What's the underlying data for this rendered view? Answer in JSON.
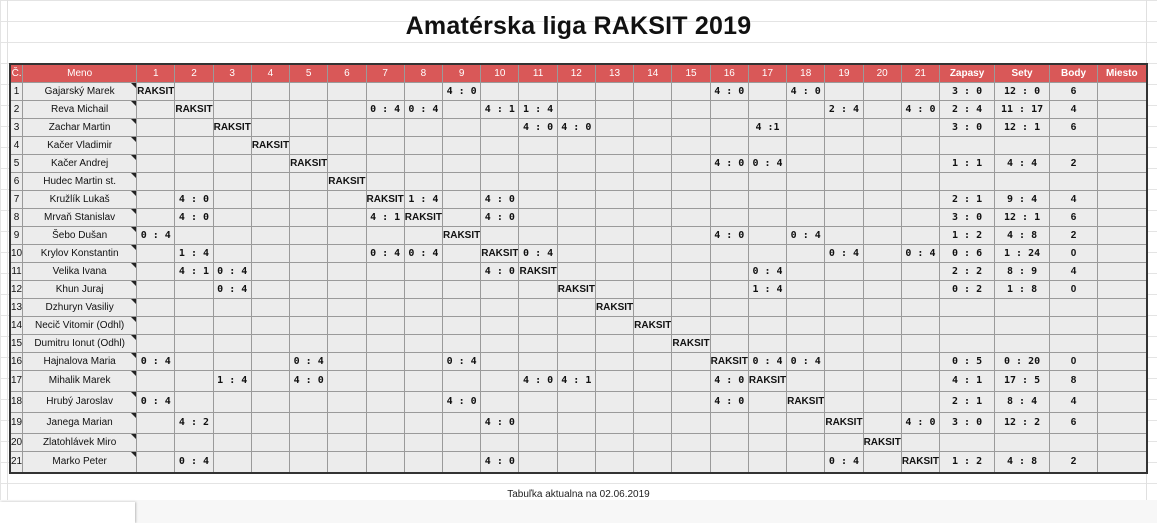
{
  "title": "Amatérska liga RAKSIT 2019",
  "footer": "Tabuľka aktualna na 02.06.2019",
  "self_label": "RAKSIT",
  "columns": {
    "no": "Č.",
    "name": "Meno",
    "opponents": [
      "1",
      "2",
      "3",
      "4",
      "5",
      "6",
      "7",
      "8",
      "9",
      "10",
      "11",
      "12",
      "13",
      "14",
      "15",
      "16",
      "17",
      "18",
      "19",
      "20",
      "21"
    ],
    "zapasy": "Zapasy",
    "sety": "Sety",
    "body": "Body",
    "miesto": "Miesto"
  },
  "players": [
    {
      "no": "1",
      "name": "Gajarský Marek",
      "results": {
        "9": "4 : 0",
        "16": "4 : 0",
        "18": "4 : 0"
      },
      "zapasy": "3 : 0",
      "sety": "12 : 0",
      "body": "6"
    },
    {
      "no": "2",
      "name": "Reva Michail",
      "results": {
        "7": "0 : 4",
        "8": "0 : 4",
        "10": "4 : 1",
        "11": "1 : 4",
        "19": "2 : 4",
        "21": "4 : 0"
      },
      "zapasy": "2 : 4",
      "sety": "11 : 17",
      "body": "4"
    },
    {
      "no": "3",
      "name": "Zachar Martin",
      "results": {
        "11": "4 : 0",
        "12": "4 : 0",
        "17": "4 :1"
      },
      "zapasy": "3 : 0",
      "sety": "12 : 1",
      "body": "6"
    },
    {
      "no": "4",
      "name": "Kačer Vladimir",
      "results": {},
      "zapasy": "",
      "sety": "",
      "body": ""
    },
    {
      "no": "5",
      "name": "Kačer Andrej",
      "results": {
        "16": "4 : 0",
        "17": "0 : 4"
      },
      "zapasy": "1 : 1",
      "sety": "4 : 4",
      "body": "2"
    },
    {
      "no": "6",
      "name": "Hudec Martin st.",
      "results": {},
      "zapasy": "",
      "sety": "",
      "body": ""
    },
    {
      "no": "7",
      "name": "Kružlík Lukaš",
      "results": {
        "2": "4 : 0",
        "8": "1 : 4",
        "10": "4 : 0"
      },
      "zapasy": "2 : 1",
      "sety": "9 : 4",
      "body": "4"
    },
    {
      "no": "8",
      "name": "Mrvaň Stanislav",
      "results": {
        "2": "4 : 0",
        "7": "4 : 1",
        "10": "4 : 0"
      },
      "zapasy": "3 : 0",
      "sety": "12 : 1",
      "body": "6"
    },
    {
      "no": "9",
      "name": "Šebo Dušan",
      "results": {
        "1": "0 : 4",
        "16": "4 : 0",
        "18": "0 : 4"
      },
      "zapasy": "1 : 2",
      "sety": "4 : 8",
      "body": "2"
    },
    {
      "no": "10",
      "name": "Krylov Konstantin",
      "results": {
        "2": "1 : 4",
        "7": "0 : 4",
        "8": "0 : 4",
        "11": "0 : 4",
        "19": "0 : 4",
        "21": "0 : 4"
      },
      "zapasy": "0 : 6",
      "sety": "1 : 24",
      "body": "0"
    },
    {
      "no": "11",
      "name": "Velika Ivana",
      "results": {
        "2": "4 : 1",
        "3": "0 : 4",
        "10": "4 : 0",
        "17": "0 : 4"
      },
      "zapasy": "2 : 2",
      "sety": "8 : 9",
      "body": "4"
    },
    {
      "no": "12",
      "name": "Khun Juraj",
      "results": {
        "3": "0 : 4",
        "17": "1 : 4"
      },
      "zapasy": "0 : 2",
      "sety": "1 : 8",
      "body": "0"
    },
    {
      "no": "13",
      "name": "Dzhuryn Vasiliy",
      "results": {},
      "zapasy": "",
      "sety": "",
      "body": ""
    },
    {
      "no": "14",
      "name": "Necič Vitomir (Odhl)",
      "results": {},
      "zapasy": "",
      "sety": "",
      "body": ""
    },
    {
      "no": "15",
      "name": "Dumitru Ionut (Odhl)",
      "results": {},
      "zapasy": "",
      "sety": "",
      "body": ""
    },
    {
      "no": "16",
      "name": "Hajnalova Maria",
      "results": {
        "1": "0 : 4",
        "5": "0 : 4",
        "9": "0 : 4",
        "17": "0 : 4",
        "18": "0 : 4"
      },
      "zapasy": "0 : 5",
      "sety": "0 : 20",
      "body": "0"
    },
    {
      "no": "17",
      "name": "Mihalik Marek",
      "results": {
        "3": "1 : 4",
        "5": "4 : 0",
        "11": "4 : 0",
        "12": "4 : 1",
        "16": "4 : 0"
      },
      "zapasy": "4 : 1",
      "sety": "17 : 5",
      "body": "8"
    },
    {
      "no": "18",
      "name": "Hrubý Jaroslav",
      "results": {
        "1": "0 : 4",
        "9": "4 : 0",
        "16": "4 : 0"
      },
      "zapasy": "2 : 1",
      "sety": "8 : 4",
      "body": "4"
    },
    {
      "no": "19",
      "name": "Janega Marian",
      "results": {
        "2": "4 : 2",
        "10": "4 : 0",
        "21": "4 : 0"
      },
      "zapasy": "3 : 0",
      "sety": "12 : 2",
      "body": "6"
    },
    {
      "no": "20",
      "name": "Zlatohlávek Miro",
      "results": {},
      "zapasy": "",
      "sety": "",
      "body": ""
    },
    {
      "no": "21",
      "name": "Marko Peter",
      "results": {
        "2": "0 : 4",
        "10": "4 : 0",
        "19": "0 : 4"
      },
      "zapasy": "1 : 2",
      "sety": "4 : 8",
      "body": "2"
    }
  ],
  "colors": {
    "header_bg": "#d95858",
    "self_cell": "#8c8c8c",
    "points": "#e02222",
    "stats_bg": "#cfcfcf",
    "place_bg": "#bdbdbd"
  }
}
